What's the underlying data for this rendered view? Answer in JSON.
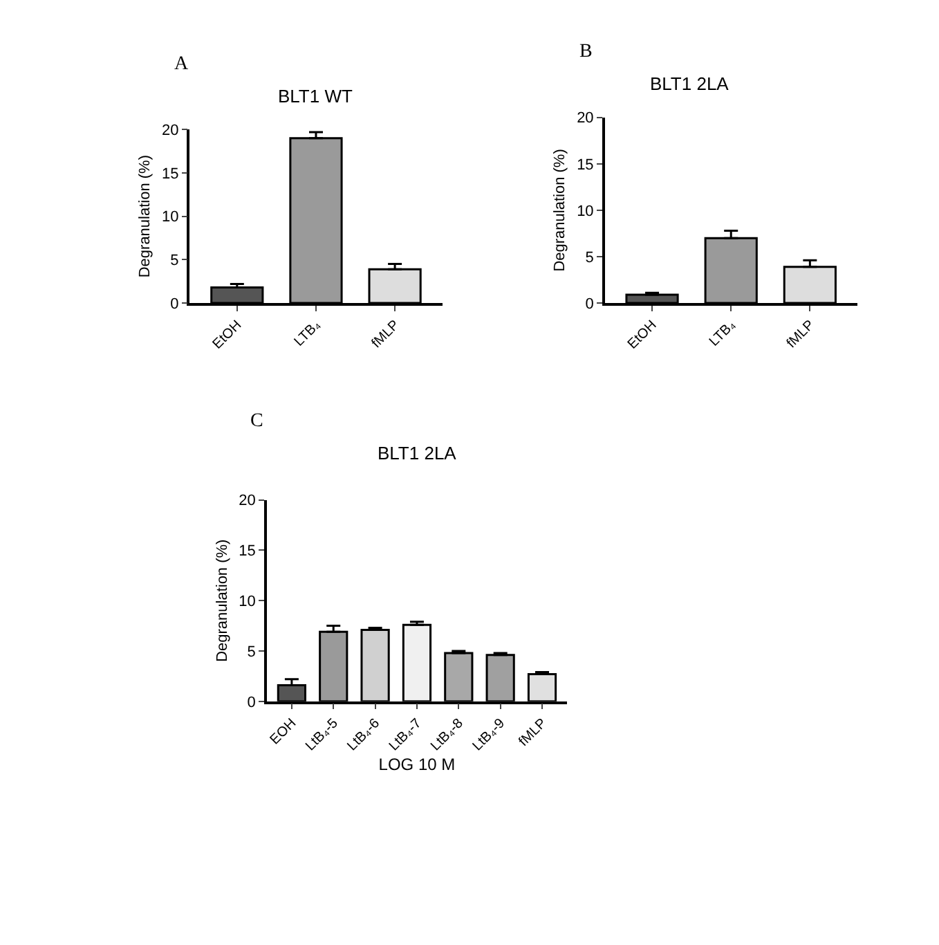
{
  "chart_data": [
    {
      "type": "bar",
      "title": "BLT1 WT",
      "ylabel": "Degranulation (%)",
      "annotations": [
        "A"
      ],
      "categories": [
        "EtOH",
        "LTB₄",
        "fMLP"
      ],
      "values": [
        1.8,
        19.0,
        3.9
      ],
      "errors": [
        [
          1.8,
          2.2
        ],
        [
          19.0,
          19.7
        ],
        [
          3.9,
          4.5
        ]
      ],
      "colors": [
        "#555555",
        "#9a9a9a",
        "#dddddd"
      ],
      "ylim": [
        0,
        20
      ],
      "yticks": [
        0,
        5,
        10,
        15,
        20
      ],
      "legend": false
    },
    {
      "type": "bar",
      "title": "BLT1 2LA",
      "ylabel": "Degranulation (%)",
      "annotations": [
        "B"
      ],
      "categories": [
        "EtOH",
        "LTB₄",
        "fMLP"
      ],
      "values": [
        0.9,
        7.0,
        3.9
      ],
      "errors": [
        [
          0.9,
          1.1
        ],
        [
          7.0,
          7.8
        ],
        [
          3.9,
          4.6
        ]
      ],
      "colors": [
        "#555555",
        "#9a9a9a",
        "#dddddd"
      ],
      "ylim": [
        0,
        20
      ],
      "yticks": [
        0,
        5,
        10,
        15,
        20
      ],
      "legend": false
    },
    {
      "type": "bar",
      "title": "BLT1 2LA",
      "ylabel": "Degranulation (%)",
      "xlabel": "LOG 10 M",
      "annotations": [
        "C"
      ],
      "categories": [
        "EOH",
        "LtB₄-5",
        "LtB₄-6",
        "LtB₄-7",
        "LtB₄-8",
        "LtB₄-9",
        "fMLP"
      ],
      "values": [
        1.6,
        6.9,
        7.1,
        7.6,
        4.8,
        4.6,
        2.7
      ],
      "errors": [
        [
          1.6,
          2.2
        ],
        [
          6.9,
          7.5
        ],
        [
          7.1,
          7.3
        ],
        [
          7.6,
          7.9
        ],
        [
          4.8,
          5.0
        ],
        [
          4.6,
          4.8
        ],
        [
          2.7,
          2.9
        ]
      ],
      "colors": [
        "#555555",
        "#9a9a9a",
        "#d0d0d0",
        "#f0f0f0",
        "#a8a8a8",
        "#a0a0a0",
        "#e0e0e0"
      ],
      "ylim": [
        0,
        20
      ],
      "yticks": [
        0,
        5,
        10,
        15,
        20
      ],
      "legend": false
    }
  ]
}
